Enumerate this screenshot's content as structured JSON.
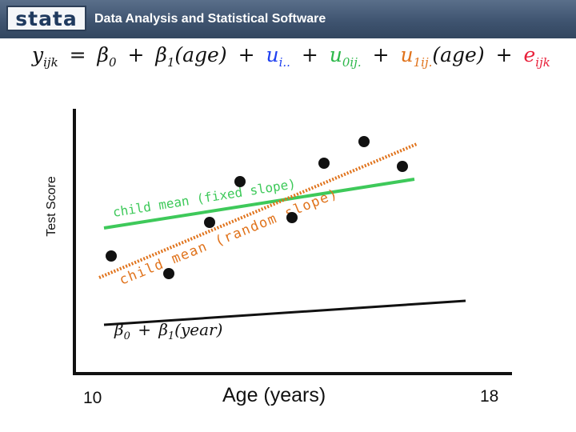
{
  "header": {
    "logo_text": "stata",
    "title": "Data Analysis and Statistical Software"
  },
  "equation": {
    "lhs": "y",
    "lhs_sub": "ijk",
    "eq_sign": "=",
    "b0": "β",
    "b0_sub": "0",
    "plus1": "+",
    "b1": "β",
    "b1_sub": "1",
    "b1_arg": "(age)",
    "plus2": "+",
    "u_i": "u",
    "u_i_sub": "i..",
    "plus3": "+",
    "u0": "u",
    "u0_sub": "0ij.",
    "plus4": "+",
    "u1": "u",
    "u1_sub": "1ij.",
    "u1_arg": "(age)",
    "plus5": "+",
    "e": "e",
    "e_sub": "ijk"
  },
  "axes": {
    "ylabel": "Test Score",
    "xlabel": "Age (years)",
    "xtick_min": "10",
    "xtick_max": "18"
  },
  "annotations": {
    "fixed_slope": "child mean (fixed slope)",
    "random_slope": "child mean (random slope)",
    "baseline_b0": "β",
    "baseline_b0_sub": "0",
    "baseline_plus": "+",
    "baseline_b1": "β",
    "baseline_b1_sub": "1",
    "baseline_arg": "(year)"
  },
  "colors": {
    "fixed_line": "#3ec95a",
    "random_line": "#e0731c",
    "baseline": "#111111",
    "points": "#111111"
  }
}
